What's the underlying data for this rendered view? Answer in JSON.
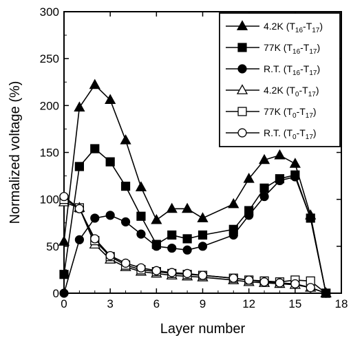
{
  "chart_data": {
    "type": "line",
    "xlabel": "Layer number",
    "ylabel": "Normalized voltage (%)",
    "xlim": [
      0,
      18
    ],
    "ylim": [
      0,
      300
    ],
    "xticks": [
      0,
      3,
      6,
      9,
      12,
      15,
      18
    ],
    "yticks": [
      0,
      50,
      100,
      150,
      200,
      250,
      300
    ],
    "grid": false,
    "legend_position": "top-right",
    "series": [
      {
        "name": "4.2K (T16-T17)",
        "label_main": "4.2K (T",
        "label_sub1": "16",
        "label_mid": "-T",
        "label_sub2": "17",
        "label_end": ")",
        "marker": "triangle",
        "filled": true,
        "x": [
          0,
          1,
          2,
          3,
          4,
          5,
          6,
          7,
          8,
          9,
          11,
          12,
          13,
          14,
          15,
          16,
          17
        ],
        "y": [
          55,
          198,
          222,
          206,
          163,
          113,
          78,
          90,
          90,
          80,
          95,
          122,
          142,
          147,
          138,
          83,
          0
        ]
      },
      {
        "name": "77K (T16-T17)",
        "label_main": "77K (T",
        "label_sub1": "16",
        "label_mid": "-T",
        "label_sub2": "17",
        "label_end": ")",
        "marker": "square",
        "filled": true,
        "x": [
          0,
          1,
          2,
          3,
          4,
          5,
          6,
          7,
          8,
          9,
          11,
          12,
          13,
          14,
          15,
          16,
          17
        ],
        "y": [
          20,
          135,
          154,
          140,
          114,
          82,
          52,
          62,
          58,
          62,
          68,
          88,
          112,
          122,
          126,
          80,
          0
        ]
      },
      {
        "name": "R.T. (T16-T17)",
        "label_main": "R.T. (T",
        "label_sub1": "16",
        "label_mid": "-T",
        "label_sub2": "17",
        "label_end": ")",
        "marker": "circle",
        "filled": true,
        "x": [
          0,
          1,
          2,
          3,
          4,
          5,
          6,
          7,
          8,
          9,
          11,
          12,
          13,
          14,
          15,
          16,
          17
        ],
        "y": [
          0,
          57,
          80,
          83,
          76,
          63,
          50,
          48,
          46,
          50,
          62,
          83,
          103,
          120,
          124,
          80,
          0
        ]
      },
      {
        "name": "4.2K (T0-T17)",
        "label_main": "4.2K (T",
        "label_sub1": "0",
        "label_mid": "-T",
        "label_sub2": "17",
        "label_end": ")",
        "marker": "triangle",
        "filled": false,
        "x": [
          0,
          1,
          2,
          3,
          4,
          5,
          6,
          7,
          8,
          9,
          11,
          12,
          13,
          14,
          15,
          16,
          17
        ],
        "y": [
          97,
          91,
          52,
          36,
          28,
          23,
          21,
          19,
          18,
          17,
          14,
          12,
          11,
          10,
          9,
          6,
          0
        ]
      },
      {
        "name": "77K (T0-T17)",
        "label_main": "77K (T",
        "label_sub1": "0",
        "label_mid": "-T",
        "label_sub2": "17",
        "label_end": ")",
        "marker": "square",
        "filled": false,
        "x": [
          0,
          1,
          2,
          3,
          4,
          5,
          6,
          7,
          8,
          9,
          11,
          12,
          13,
          14,
          15,
          16,
          17
        ],
        "y": [
          100,
          91,
          56,
          39,
          30,
          25,
          23,
          21,
          20,
          19,
          16,
          14,
          13,
          12,
          14,
          13,
          0
        ]
      },
      {
        "name": "R.T. (T0-T17)",
        "label_main": "R.T. (T",
        "label_sub1": "0",
        "label_mid": "-T",
        "label_sub2": "17",
        "label_end": ")",
        "marker": "circle",
        "filled": false,
        "x": [
          0,
          1,
          2,
          3,
          4,
          5,
          6,
          7,
          8,
          9,
          11,
          12,
          13,
          14,
          15,
          16,
          17
        ],
        "y": [
          103,
          90,
          58,
          40,
          32,
          27,
          24,
          22,
          21,
          19,
          16,
          14,
          12,
          11,
          10,
          6,
          0
        ]
      }
    ]
  }
}
